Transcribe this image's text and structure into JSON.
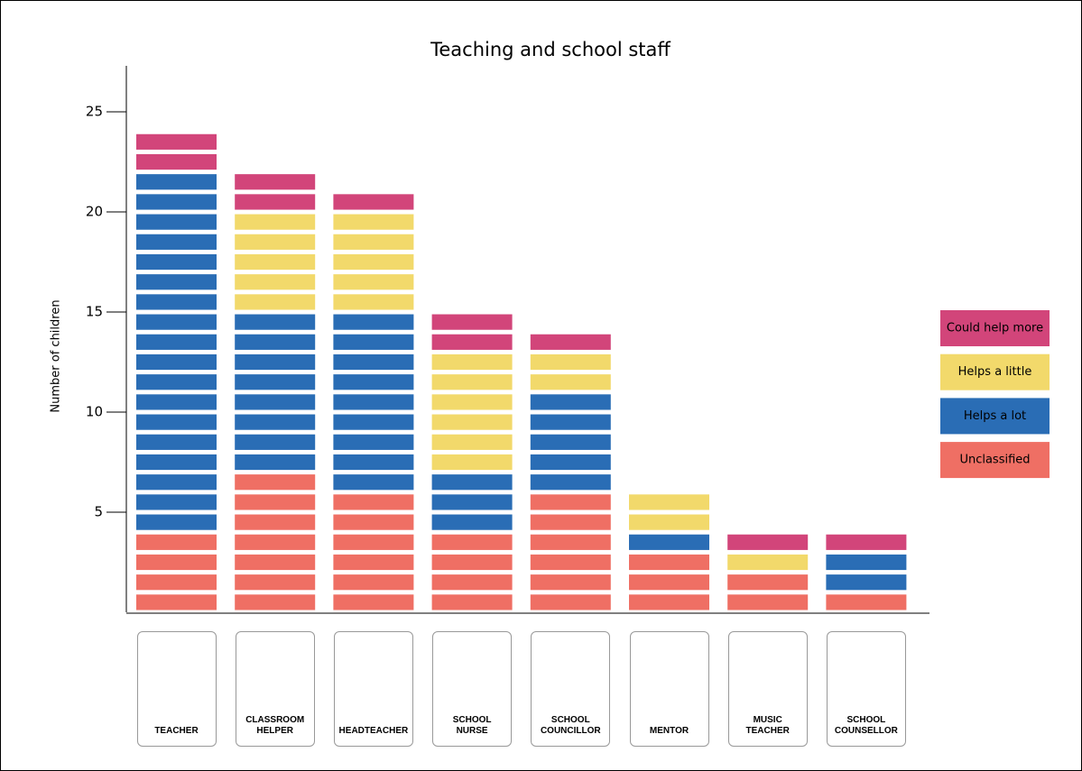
{
  "chart_data": {
    "type": "bar",
    "stacked": true,
    "title": "Teaching and school staff",
    "ylabel": "Number of children",
    "categories": [
      "TEACHER",
      "CLASSROOM HELPER",
      "HEADTEACHER",
      "SCHOOL NURSE",
      "SCHOOL COUNCILLOR",
      "MENTOR",
      "MUSIC TEACHER",
      "SCHOOL COUNSELLOR"
    ],
    "series": [
      {
        "name": "Unclassified",
        "color": "#ef6f64",
        "values": [
          4,
          7,
          6,
          4,
          6,
          3,
          2,
          1
        ]
      },
      {
        "name": "Helps a lot",
        "color": "#2a6db5",
        "values": [
          18,
          8,
          9,
          3,
          5,
          1,
          0,
          2
        ]
      },
      {
        "name": "Helps a little",
        "color": "#f2d96b",
        "values": [
          0,
          5,
          5,
          6,
          2,
          2,
          1,
          0
        ]
      },
      {
        "name": "Could help more",
        "color": "#d2457a",
        "values": [
          2,
          2,
          1,
          2,
          1,
          0,
          1,
          1
        ]
      }
    ],
    "ylim": [
      0,
      27.3
    ],
    "yticks": [
      5,
      10,
      15,
      20,
      25
    ],
    "legend": "right"
  }
}
